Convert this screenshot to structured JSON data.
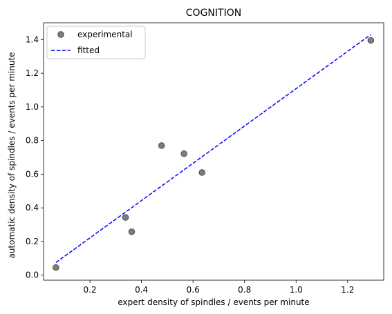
{
  "chart_data": {
    "type": "scatter",
    "title": "COGNITION",
    "xlabel": "expert density of spindles / events per minute",
    "ylabel": "automatic density of spindles / events per minute",
    "xlim": [
      0.02,
      1.34
    ],
    "ylim": [
      -0.03,
      1.5
    ],
    "xticks": [
      0.2,
      0.4,
      0.6,
      0.8,
      1.0,
      1.2
    ],
    "xtick_labels": [
      "0.2",
      "0.4",
      "0.6",
      "0.8",
      "1.0",
      "1.2"
    ],
    "yticks": [
      0.0,
      0.2,
      0.4,
      0.6,
      0.8,
      1.0,
      1.2,
      1.4
    ],
    "ytick_labels": [
      "0.0",
      "0.2",
      "0.4",
      "0.6",
      "0.8",
      "1.0",
      "1.2",
      "1.4"
    ],
    "grid": false,
    "legend_position": "top-left",
    "series": [
      {
        "name": "experimental",
        "kind": "scatter",
        "color": "#666666",
        "x": [
          0.068,
          0.338,
          0.362,
          0.478,
          0.565,
          0.635,
          1.29
        ],
        "y": [
          0.045,
          0.343,
          0.258,
          0.77,
          0.722,
          0.61,
          1.395
        ]
      },
      {
        "name": "fitted",
        "kind": "line",
        "style": "dashed",
        "color": "#0000ff",
        "x": [
          0.068,
          1.29
        ],
        "y": [
          0.075,
          1.43
        ]
      }
    ]
  }
}
